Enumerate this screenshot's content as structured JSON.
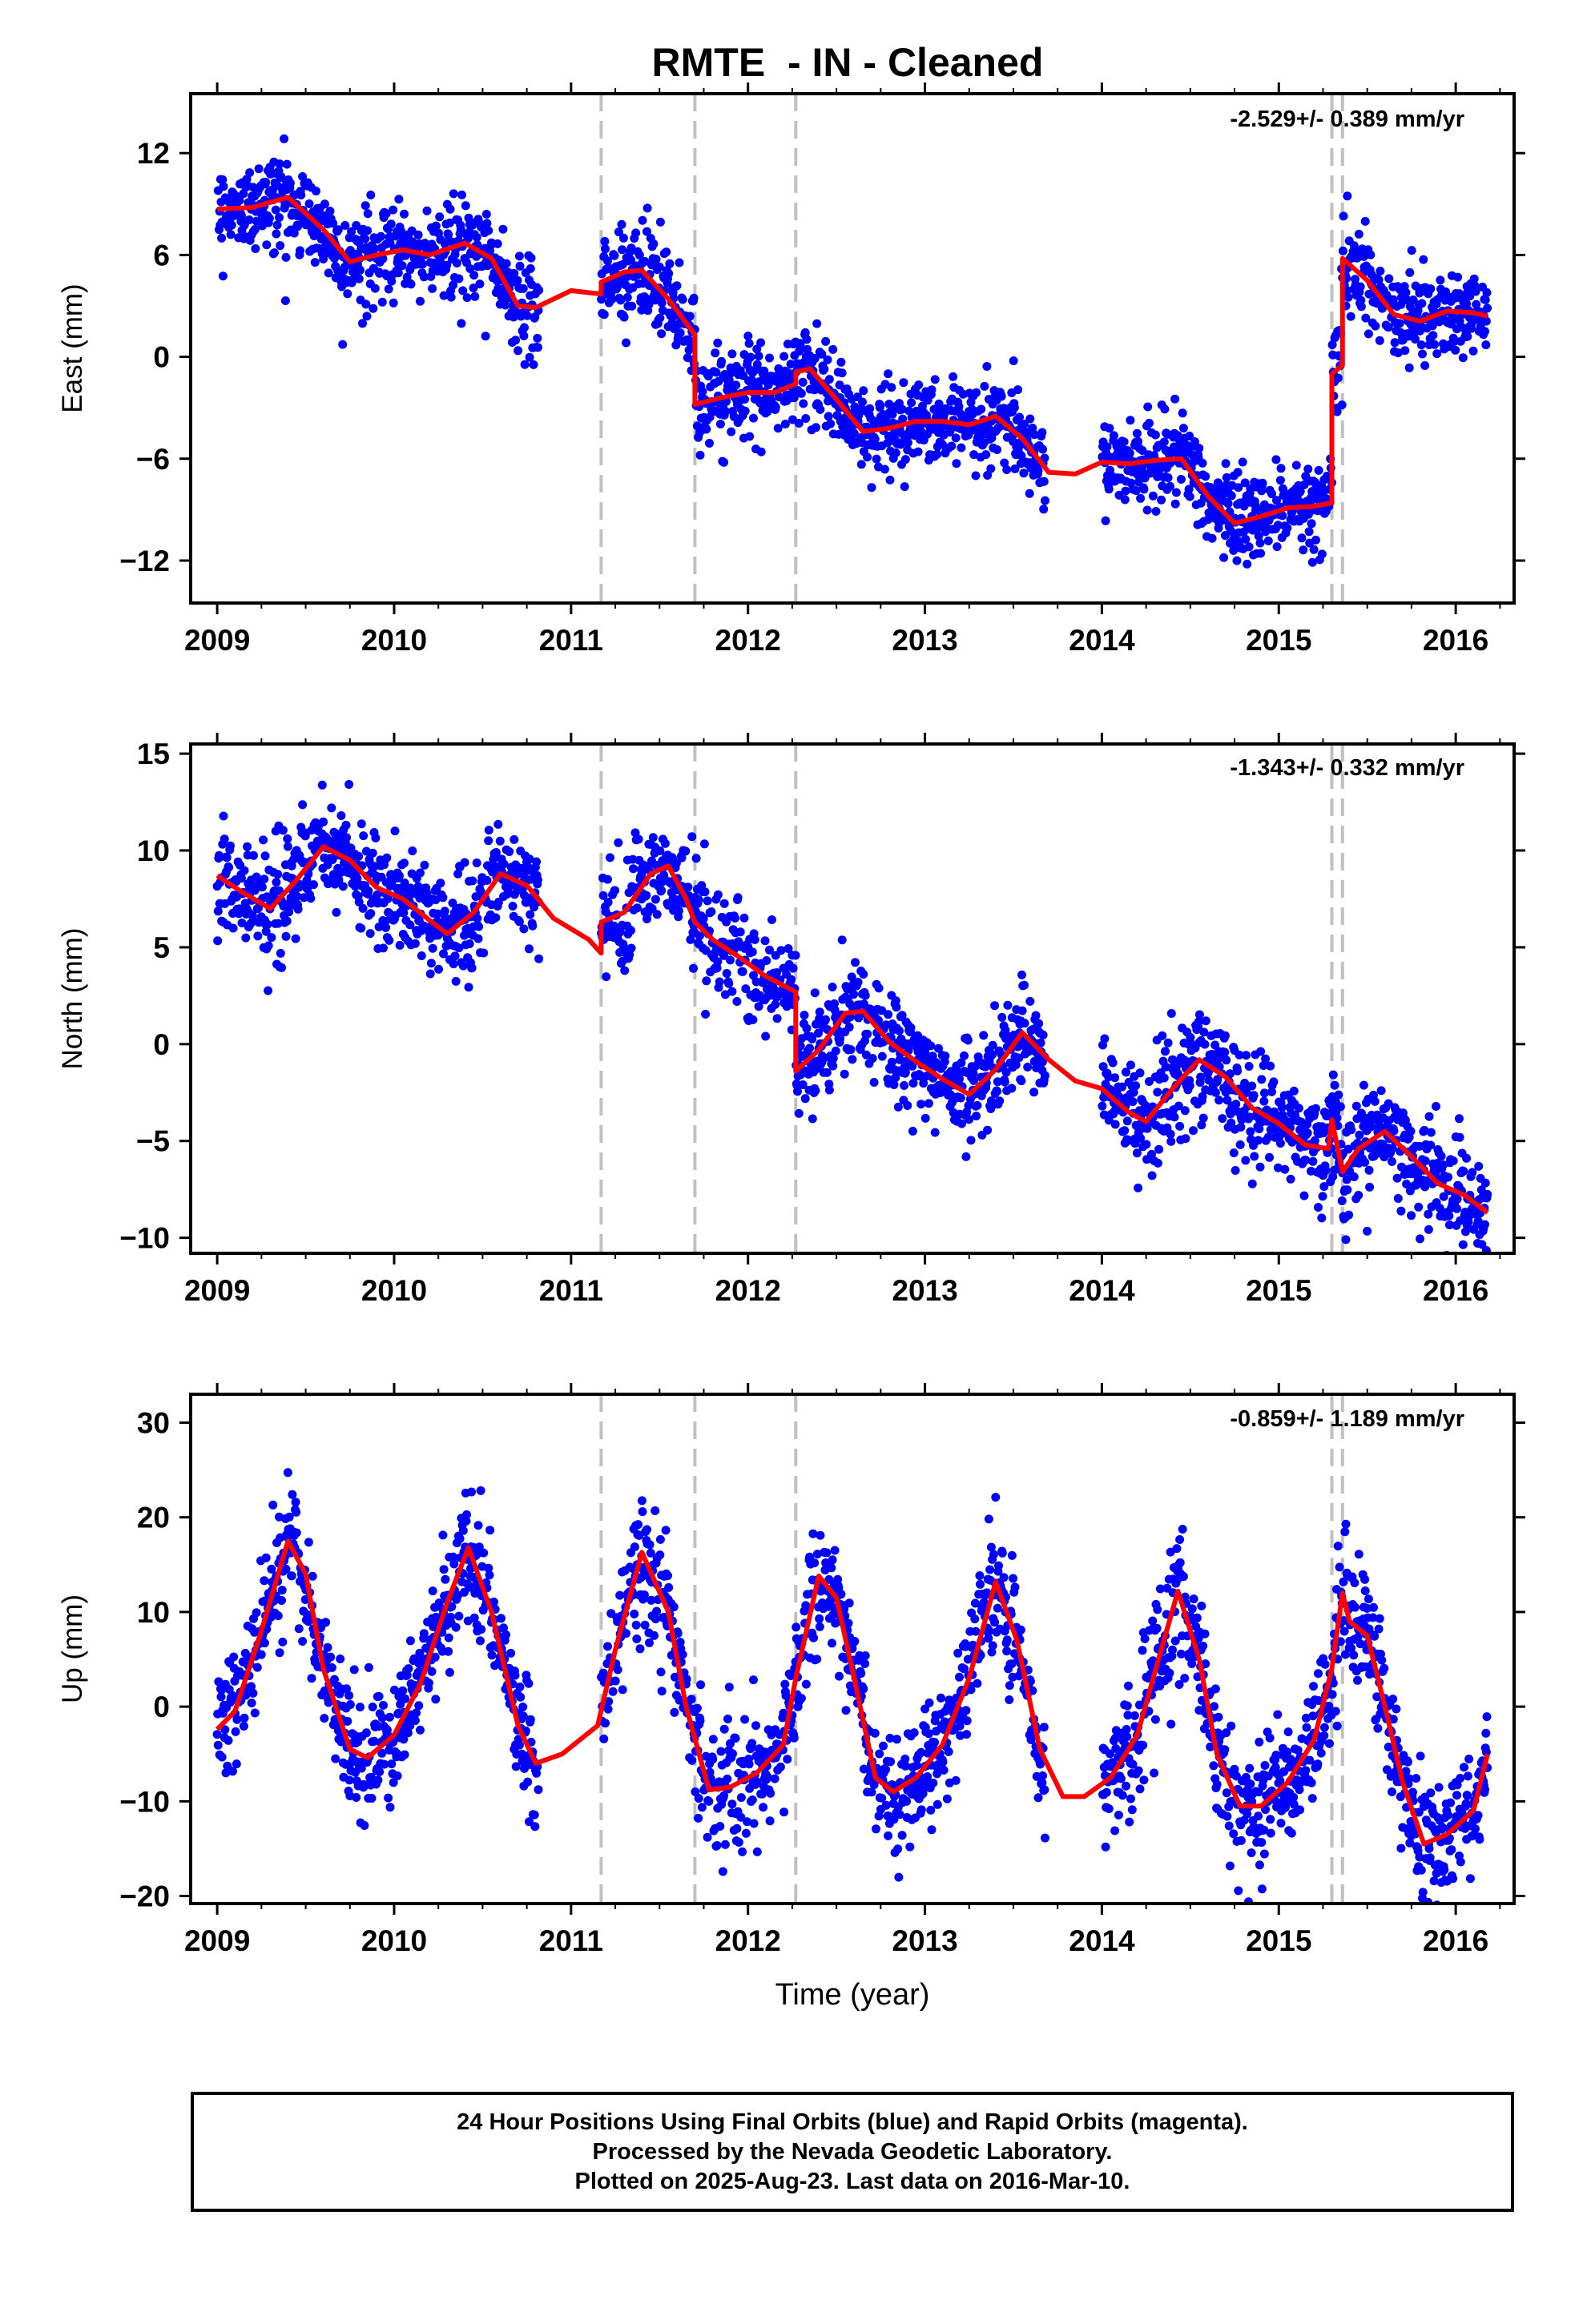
{
  "title": "RMTE  - IN - Cleaned",
  "footer": {
    "line1": "24 Hour Positions Using Final Orbits (blue) and Rapid Orbits (magenta).",
    "line2": "Processed by the Nevada Geodetic Laboratory.",
    "line3": "Plotted on 2025-Aug-23. Last data on 2016-Mar-10."
  },
  "colors": {
    "data": "#0000ff",
    "model": "#ff0000",
    "steps": "#c0c0c0"
  },
  "chart_data": [
    {
      "type": "scatter",
      "ylabel": "East (mm)",
      "xlabel": "",
      "rate": "-2.529+/- 0.389 mm/yr",
      "xlim": [
        2008.85,
        2016.33
      ],
      "ylim": [
        -14.5,
        15.5
      ],
      "xticks": [
        2009,
        2010,
        2011,
        2012,
        2013,
        2014,
        2015,
        2016
      ],
      "yticks": [
        -12,
        -6,
        0,
        6,
        12
      ],
      "steps": [
        2011.17,
        2011.7,
        2012.27,
        2015.3,
        2015.36
      ],
      "gaps": [
        [
          2010.82,
          2011.17
        ],
        [
          2013.68,
          2014.0
        ]
      ],
      "model": [
        [
          2009.0,
          8.7
        ],
        [
          2009.2,
          8.8
        ],
        [
          2009.4,
          9.4
        ],
        [
          2009.6,
          7.5
        ],
        [
          2009.75,
          5.6
        ],
        [
          2009.9,
          6.0
        ],
        [
          2010.05,
          6.3
        ],
        [
          2010.2,
          6.0
        ],
        [
          2010.4,
          6.7
        ],
        [
          2010.55,
          5.8
        ],
        [
          2010.7,
          3.0
        ],
        [
          2010.8,
          2.9
        ],
        [
          2011.0,
          3.9
        ],
        [
          2011.17,
          3.7
        ],
        [
          2011.17,
          4.4
        ],
        [
          2011.3,
          5.0
        ],
        [
          2011.4,
          5.1
        ],
        [
          2011.55,
          3.4
        ],
        [
          2011.7,
          1.3
        ],
        [
          2011.7,
          -2.8
        ],
        [
          2011.85,
          -2.4
        ],
        [
          2012.0,
          -2.1
        ],
        [
          2012.15,
          -2.1
        ],
        [
          2012.27,
          -1.6
        ],
        [
          2012.27,
          -0.9
        ],
        [
          2012.35,
          -0.7
        ],
        [
          2012.5,
          -2.5
        ],
        [
          2012.65,
          -4.4
        ],
        [
          2012.8,
          -4.2
        ],
        [
          2012.95,
          -3.8
        ],
        [
          2013.1,
          -3.8
        ],
        [
          2013.25,
          -4.0
        ],
        [
          2013.4,
          -3.5
        ],
        [
          2013.55,
          -4.8
        ],
        [
          2013.7,
          -6.8
        ],
        [
          2013.85,
          -6.9
        ],
        [
          2014.0,
          -6.2
        ],
        [
          2014.15,
          -6.3
        ],
        [
          2014.3,
          -6.1
        ],
        [
          2014.45,
          -6.0
        ],
        [
          2014.6,
          -8.2
        ],
        [
          2014.75,
          -9.8
        ],
        [
          2014.9,
          -9.4
        ],
        [
          2015.05,
          -8.9
        ],
        [
          2015.2,
          -8.8
        ],
        [
          2015.3,
          -8.6
        ],
        [
          2015.3,
          -1.0
        ],
        [
          2015.36,
          -0.5
        ],
        [
          2015.36,
          5.8
        ],
        [
          2015.5,
          4.5
        ],
        [
          2015.65,
          2.5
        ],
        [
          2015.8,
          2.1
        ],
        [
          2015.95,
          2.7
        ],
        [
          2016.1,
          2.6
        ],
        [
          2016.18,
          2.4
        ]
      ]
    },
    {
      "type": "scatter",
      "ylabel": "North (mm)",
      "xlabel": "",
      "rate": "-1.343+/- 0.332 mm/yr",
      "xlim": [
        2008.85,
        2016.33
      ],
      "ylim": [
        -10.8,
        15.5
      ],
      "xticks": [
        2009,
        2010,
        2011,
        2012,
        2013,
        2014,
        2015,
        2016
      ],
      "yticks": [
        -10,
        -5,
        0,
        5,
        10,
        15
      ],
      "steps": [
        2011.17,
        2011.7,
        2012.27,
        2015.3,
        2015.36
      ],
      "gaps": [
        [
          2010.82,
          2011.17
        ],
        [
          2013.68,
          2014.0
        ]
      ],
      "model": [
        [
          2009.0,
          8.7
        ],
        [
          2009.15,
          7.8
        ],
        [
          2009.3,
          7.0
        ],
        [
          2009.45,
          8.5
        ],
        [
          2009.6,
          10.2
        ],
        [
          2009.75,
          9.5
        ],
        [
          2009.9,
          8.1
        ],
        [
          2010.05,
          7.5
        ],
        [
          2010.2,
          6.4
        ],
        [
          2010.3,
          5.7
        ],
        [
          2010.45,
          6.8
        ],
        [
          2010.6,
          8.8
        ],
        [
          2010.75,
          8.2
        ],
        [
          2010.9,
          6.5
        ],
        [
          2011.1,
          5.4
        ],
        [
          2011.17,
          4.7
        ],
        [
          2011.17,
          6.3
        ],
        [
          2011.3,
          6.8
        ],
        [
          2011.45,
          8.8
        ],
        [
          2011.55,
          9.2
        ],
        [
          2011.65,
          7.5
        ],
        [
          2011.7,
          6.3
        ],
        [
          2011.8,
          5.4
        ],
        [
          2011.95,
          4.5
        ],
        [
          2012.1,
          3.5
        ],
        [
          2012.27,
          2.7
        ],
        [
          2012.27,
          -1.4
        ],
        [
          2012.4,
          -0.3
        ],
        [
          2012.55,
          1.6
        ],
        [
          2012.65,
          1.7
        ],
        [
          2012.8,
          0.1
        ],
        [
          2012.95,
          -0.9
        ],
        [
          2013.1,
          -1.8
        ],
        [
          2013.25,
          -2.6
        ],
        [
          2013.4,
          -1.3
        ],
        [
          2013.55,
          0.6
        ],
        [
          2013.7,
          -0.8
        ],
        [
          2013.85,
          -1.9
        ],
        [
          2014.0,
          -2.3
        ],
        [
          2014.15,
          -3.5
        ],
        [
          2014.25,
          -4.0
        ],
        [
          2014.4,
          -2.3
        ],
        [
          2014.55,
          -0.8
        ],
        [
          2014.7,
          -1.7
        ],
        [
          2014.85,
          -3.3
        ],
        [
          2015.0,
          -4.1
        ],
        [
          2015.15,
          -5.2
        ],
        [
          2015.28,
          -5.4
        ],
        [
          2015.3,
          -3.9
        ],
        [
          2015.36,
          -6.6
        ],
        [
          2015.45,
          -5.4
        ],
        [
          2015.6,
          -4.5
        ],
        [
          2015.75,
          -5.8
        ],
        [
          2015.9,
          -7.2
        ],
        [
          2016.05,
          -7.8
        ],
        [
          2016.18,
          -8.7
        ]
      ]
    },
    {
      "type": "scatter",
      "ylabel": "Up (mm)",
      "xlabel": "Time (year)",
      "rate": "-0.859+/- 1.189 mm/yr",
      "xlim": [
        2008.85,
        2016.33
      ],
      "ylim": [
        -20.8,
        33
      ],
      "xticks": [
        2009,
        2010,
        2011,
        2012,
        2013,
        2014,
        2015,
        2016
      ],
      "yticks": [
        -20,
        -10,
        0,
        10,
        20,
        30
      ],
      "steps": [
        2011.17,
        2011.7,
        2012.27,
        2015.3,
        2015.36
      ],
      "gaps": [
        [
          2010.82,
          2011.17
        ],
        [
          2013.68,
          2014.0
        ]
      ],
      "model": [
        [
          2009.0,
          -2.4
        ],
        [
          2009.1,
          -0.5
        ],
        [
          2009.25,
          8.0
        ],
        [
          2009.4,
          17.5
        ],
        [
          2009.5,
          14.0
        ],
        [
          2009.6,
          4.0
        ],
        [
          2009.75,
          -4.5
        ],
        [
          2009.85,
          -5.4
        ],
        [
          2010.0,
          -3.0
        ],
        [
          2010.15,
          2.5
        ],
        [
          2010.3,
          11.0
        ],
        [
          2010.42,
          16.8
        ],
        [
          2010.55,
          10.0
        ],
        [
          2010.7,
          -2.0
        ],
        [
          2010.8,
          -6.0
        ],
        [
          2010.95,
          -5.0
        ],
        [
          2011.15,
          -2.0
        ],
        [
          2011.25,
          6.0
        ],
        [
          2011.4,
          16.3
        ],
        [
          2011.55,
          10.0
        ],
        [
          2011.65,
          0.0
        ],
        [
          2011.78,
          -8.8
        ],
        [
          2011.9,
          -8.5
        ],
        [
          2012.05,
          -7.0
        ],
        [
          2012.2,
          -4.0
        ],
        [
          2012.27,
          3.0
        ],
        [
          2012.4,
          13.8
        ],
        [
          2012.5,
          11.5
        ],
        [
          2012.6,
          3.0
        ],
        [
          2012.72,
          -7.5
        ],
        [
          2012.82,
          -9.0
        ],
        [
          2012.95,
          -7.5
        ],
        [
          2013.1,
          -4.0
        ],
        [
          2013.25,
          3.0
        ],
        [
          2013.4,
          13.2
        ],
        [
          2013.52,
          7.0
        ],
        [
          2013.65,
          -4.5
        ],
        [
          2013.78,
          -9.5
        ],
        [
          2013.9,
          -9.5
        ],
        [
          2014.05,
          -7.5
        ],
        [
          2014.2,
          -3.0
        ],
        [
          2014.32,
          5.0
        ],
        [
          2014.43,
          12.2
        ],
        [
          2014.55,
          5.0
        ],
        [
          2014.65,
          -5.0
        ],
        [
          2014.78,
          -10.5
        ],
        [
          2014.9,
          -10.5
        ],
        [
          2015.05,
          -8.0
        ],
        [
          2015.2,
          -3.5
        ],
        [
          2015.3,
          4.0
        ],
        [
          2015.33,
          8.0
        ],
        [
          2015.36,
          12.0
        ],
        [
          2015.4,
          9.0
        ],
        [
          2015.5,
          7.5
        ],
        [
          2015.6,
          0.0
        ],
        [
          2015.7,
          -8.0
        ],
        [
          2015.82,
          -14.5
        ],
        [
          2015.95,
          -13.5
        ],
        [
          2016.1,
          -11.0
        ],
        [
          2016.18,
          -5.0
        ]
      ],
      "noise_sd": 3.6
    }
  ]
}
